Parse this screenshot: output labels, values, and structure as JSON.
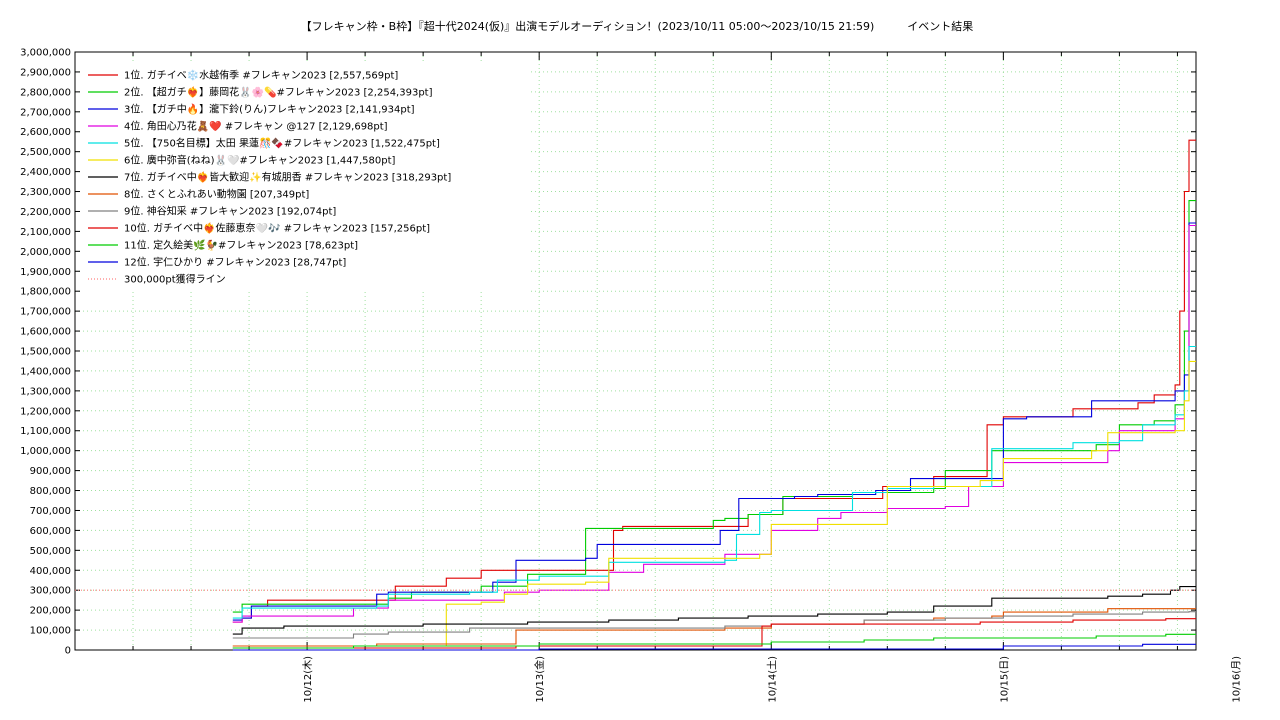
{
  "chart_data": {
    "type": "line",
    "title": "【フレキャン枠・B枠】『超十代2024(仮)』出演モデルオーディション！(2023/10/11 05:00〜2023/10/15 21:59)　　　イベント結果",
    "xlabel": "",
    "ylabel": "",
    "ylim": [
      0,
      3000000
    ],
    "xlim": [
      0,
      4.83
    ],
    "x_tick_labels": [
      "10/12(木)",
      "10/13(金)",
      "10/14(土)",
      "10/15(日)",
      "10/16(月)"
    ],
    "x_tick_values": [
      1,
      2,
      3,
      4,
      5
    ],
    "y_ticks": [
      "0",
      "100,000",
      "200,000",
      "300,000",
      "400,000",
      "500,000",
      "600,000",
      "700,000",
      "800,000",
      "900,000",
      "1,000,000",
      "1,100,000",
      "1,200,000",
      "1,300,000",
      "1,400,000",
      "1,500,000",
      "1,600,000",
      "1,700,000",
      "1,800,000",
      "1,900,000",
      "2,000,000",
      "2,100,000",
      "2,200,000",
      "2,300,000",
      "2,400,000",
      "2,500,000",
      "2,600,000",
      "2,700,000",
      "2,800,000",
      "2,900,000",
      "3,000,000"
    ],
    "grid": true,
    "legend_position": "top-left",
    "series": [
      {
        "name": "1位. ガチイベ❄️水越侑季 #フレキャン2023 [2,557,569pt]",
        "color": "#e00000",
        "x": [
          0.68,
          0.72,
          0.76,
          0.83,
          1.0,
          1.2,
          1.38,
          1.45,
          1.6,
          1.75,
          1.85,
          2.1,
          2.32,
          2.36,
          2.6,
          2.9,
          3.05,
          3.2,
          3.35,
          3.48,
          3.55,
          3.7,
          3.85,
          3.93,
          4.0,
          4.08,
          4.3,
          4.45,
          4.58,
          4.65,
          4.74,
          4.76,
          4.78,
          4.8,
          4.83
        ],
        "y": [
          140000,
          160000,
          220000,
          250000,
          250000,
          250000,
          320000,
          320000,
          360000,
          400000,
          400000,
          400000,
          600000,
          620000,
          620000,
          680000,
          760000,
          760000,
          760000,
          820000,
          820000,
          870000,
          870000,
          1130000,
          1170000,
          1170000,
          1210000,
          1210000,
          1240000,
          1280000,
          1330000,
          1700000,
          2300000,
          2557569,
          2557569
        ]
      },
      {
        "name": "2位. 【超ガチ❤️‍🔥】藤岡花🐰🌸💊#フレキャン2023 [2,254,393pt]",
        "color": "#00cc00",
        "x": [
          0.68,
          0.72,
          0.8,
          1.0,
          1.35,
          1.45,
          1.6,
          1.75,
          1.95,
          2.1,
          2.2,
          2.6,
          2.75,
          2.8,
          2.9,
          3.05,
          3.1,
          3.3,
          3.35,
          3.7,
          3.75,
          3.85,
          3.95,
          4.0,
          4.2,
          4.4,
          4.5,
          4.6,
          4.65,
          4.74,
          4.76,
          4.78,
          4.8,
          4.83
        ],
        "y": [
          190000,
          230000,
          230000,
          230000,
          260000,
          290000,
          290000,
          320000,
          380000,
          380000,
          610000,
          610000,
          650000,
          660000,
          680000,
          770000,
          770000,
          770000,
          790000,
          810000,
          900000,
          900000,
          1000000,
          1000000,
          1000000,
          1030000,
          1130000,
          1130000,
          1150000,
          1230000,
          1230000,
          1600000,
          2254393,
          2254393
        ]
      },
      {
        "name": "3位. 【ガチ中🔥】瀧下鈴(りん)フレキャン2023 [2,141,934pt]",
        "color": "#0000dd",
        "x": [
          0.68,
          0.72,
          0.76,
          0.9,
          1.05,
          1.2,
          1.28,
          1.3,
          1.35,
          1.6,
          1.7,
          1.8,
          1.9,
          2.0,
          2.1,
          2.2,
          2.25,
          2.3,
          2.7,
          2.78,
          2.86,
          3.0,
          3.1,
          3.2,
          3.3,
          3.45,
          3.6,
          3.7,
          3.95,
          4.0,
          4.1,
          4.3,
          4.38,
          4.46,
          4.6,
          4.7,
          4.74,
          4.78,
          4.8,
          4.83
        ],
        "y": [
          150000,
          160000,
          220000,
          220000,
          220000,
          220000,
          220000,
          280000,
          290000,
          290000,
          290000,
          340000,
          450000,
          450000,
          450000,
          460000,
          530000,
          530000,
          530000,
          600000,
          760000,
          760000,
          770000,
          780000,
          780000,
          800000,
          860000,
          860000,
          860000,
          1160000,
          1170000,
          1170000,
          1250000,
          1250000,
          1250000,
          1250000,
          1300000,
          1380000,
          2141934,
          2141934
        ]
      },
      {
        "name": "4位. 角田心乃花🧸❤️ #フレキャン @127 [2,129,698pt]",
        "color": "#e000e0",
        "x": [
          0.68,
          0.72,
          0.9,
          1.1,
          1.2,
          1.35,
          1.6,
          1.85,
          2.0,
          2.1,
          2.3,
          2.45,
          2.5,
          2.8,
          2.9,
          3.0,
          3.1,
          3.2,
          3.3,
          3.4,
          3.5,
          3.65,
          3.75,
          3.85,
          3.95,
          4.0,
          4.1,
          4.3,
          4.45,
          4.5,
          4.7,
          4.74,
          4.78,
          4.8,
          4.83
        ],
        "y": [
          140000,
          170000,
          170000,
          170000,
          210000,
          250000,
          250000,
          290000,
          300000,
          300000,
          390000,
          430000,
          430000,
          480000,
          480000,
          600000,
          600000,
          660000,
          690000,
          690000,
          710000,
          710000,
          720000,
          820000,
          820000,
          940000,
          940000,
          940000,
          1000000,
          1100000,
          1100000,
          1160000,
          1300000,
          2129698,
          2129698
        ]
      },
      {
        "name": "5位. 【750名目標】太田 果蓮🎊🍫#フレキャン2023 [1,522,475pt]",
        "color": "#00e0e0",
        "x": [
          0.68,
          0.72,
          1.0,
          1.3,
          1.35,
          1.6,
          1.7,
          1.82,
          2.0,
          2.2,
          2.3,
          2.6,
          2.8,
          2.85,
          2.95,
          3.0,
          3.2,
          3.35,
          3.5,
          3.7,
          3.9,
          3.95,
          4.0,
          4.15,
          4.3,
          4.5,
          4.6,
          4.7,
          4.74,
          4.78,
          4.8,
          4.83
        ],
        "y": [
          160000,
          210000,
          210000,
          220000,
          280000,
          280000,
          290000,
          350000,
          370000,
          370000,
          440000,
          440000,
          450000,
          580000,
          690000,
          700000,
          700000,
          790000,
          810000,
          820000,
          820000,
          1010000,
          1010000,
          1010000,
          1040000,
          1050000,
          1130000,
          1130000,
          1180000,
          1300000,
          1522475,
          1522475
        ]
      },
      {
        "name": "6位. 廣中弥音(ねね)🐰🤍#フレキャン2023 [1,447,580pt]",
        "color": "#f0e000",
        "x": [
          0.68,
          0.72,
          1.0,
          1.3,
          1.6,
          1.75,
          1.85,
          1.95,
          2.2,
          2.3,
          2.45,
          2.6,
          2.85,
          2.95,
          3.0,
          3.2,
          3.4,
          3.5,
          3.6,
          3.75,
          3.9,
          4.0,
          4.1,
          4.2,
          4.38,
          4.45,
          4.5,
          4.7,
          4.74,
          4.78,
          4.8,
          4.83
        ],
        "y": [
          20000,
          20000,
          20000,
          20000,
          230000,
          240000,
          280000,
          330000,
          340000,
          460000,
          460000,
          460000,
          460000,
          480000,
          630000,
          630000,
          630000,
          820000,
          820000,
          820000,
          850000,
          960000,
          960000,
          960000,
          1000000,
          1090000,
          1090000,
          1090000,
          1100000,
          1250000,
          1447580,
          1447580
        ]
      },
      {
        "name": "7位. ガチイベ中❤️‍🔥皆大歓迎✨有城朋香 #フレキャン2023 [318,293pt]",
        "color": "#000000",
        "x": [
          0.68,
          0.72,
          0.9,
          1.2,
          1.5,
          1.7,
          1.95,
          2.3,
          2.6,
          2.9,
          3.2,
          3.5,
          3.7,
          3.95,
          4.2,
          4.45,
          4.6,
          4.72,
          4.76,
          4.83
        ],
        "y": [
          80000,
          110000,
          120000,
          120000,
          130000,
          130000,
          140000,
          150000,
          160000,
          170000,
          180000,
          190000,
          220000,
          260000,
          260000,
          270000,
          280000,
          300000,
          318293,
          318293
        ]
      },
      {
        "name": "8位. さくとふれあい動物園 [207,349pt]",
        "color": "#e05000",
        "x": [
          0.68,
          0.72,
          1.0,
          1.3,
          1.7,
          1.9,
          2.3,
          2.6,
          2.8,
          3.0,
          3.4,
          3.7,
          3.95,
          4.0,
          4.3,
          4.45,
          4.6,
          4.83
        ],
        "y": [
          20000,
          20000,
          20000,
          30000,
          30000,
          100000,
          100000,
          100000,
          110000,
          130000,
          150000,
          160000,
          170000,
          190000,
          190000,
          207349,
          207349,
          207349
        ]
      },
      {
        "name": "9位. 神谷知采 #フレキャン2023 [192,074pt]",
        "color": "#808080",
        "x": [
          0.68,
          0.72,
          1.0,
          1.2,
          1.35,
          1.7,
          2.0,
          2.4,
          2.8,
          3.0,
          3.4,
          3.75,
          4.0,
          4.3,
          4.6,
          4.8,
          4.83
        ],
        "y": [
          60000,
          60000,
          60000,
          80000,
          90000,
          110000,
          110000,
          110000,
          120000,
          130000,
          150000,
          160000,
          170000,
          180000,
          190000,
          192074,
          192074
        ]
      },
      {
        "name": "10位. ガチイベ中❤️‍🔥佐藤恵奈🤍🎶 #フレキャン2023 [157,256pt]",
        "color": "#e00000",
        "x": [
          0.68,
          0.72,
          1.2,
          1.5,
          1.9,
          2.2,
          2.5,
          2.9,
          2.96,
          3.0,
          3.5,
          3.9,
          4.3,
          4.7,
          4.83
        ],
        "y": [
          10000,
          10000,
          10000,
          10000,
          20000,
          20000,
          20000,
          20000,
          120000,
          130000,
          130000,
          140000,
          150000,
          157256,
          157256
        ]
      },
      {
        "name": "11位. 定久絵美🌿🐓#フレキャン2023 [78,623pt]",
        "color": "#00cc00",
        "x": [
          0.68,
          0.72,
          1.2,
          1.6,
          2.0,
          2.4,
          2.8,
          3.0,
          3.4,
          3.7,
          4.0,
          4.4,
          4.7,
          4.83
        ],
        "y": [
          10000,
          10000,
          20000,
          20000,
          30000,
          30000,
          30000,
          40000,
          50000,
          60000,
          60000,
          70000,
          78623,
          78623
        ]
      },
      {
        "name": "12位. 宇仁ひかり #フレキャン2023 [28,747pt]",
        "color": "#0000dd",
        "x": [
          0.68,
          0.72,
          1.0,
          1.5,
          2.0,
          2.5,
          3.0,
          3.5,
          3.9,
          4.0,
          4.4,
          4.6,
          4.83
        ],
        "y": [
          0,
          0,
          0,
          0,
          5000,
          5000,
          5000,
          5000,
          5000,
          20000,
          20000,
          28747,
          28747
        ]
      },
      {
        "name": "300,000pt獲得ライン",
        "color": "#ff8080",
        "dotted": true,
        "x": [
          0,
          4.83
        ],
        "y": [
          300000,
          300000
        ]
      }
    ]
  }
}
